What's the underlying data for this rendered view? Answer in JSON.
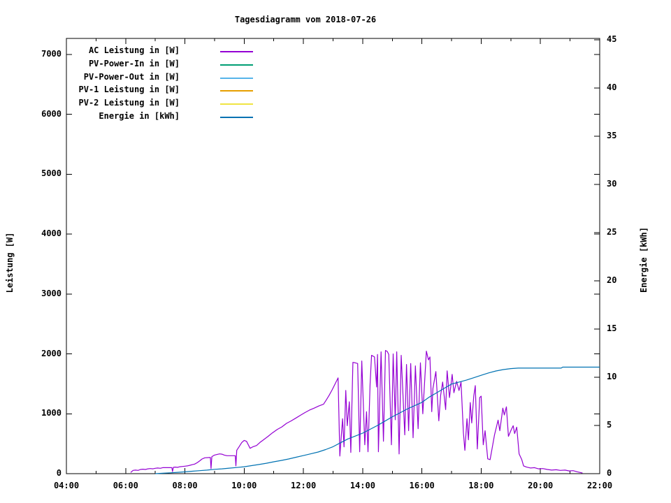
{
  "title": "Tagesdiagramm vom 2018-07-26",
  "axes": {
    "x": {
      "tick_labels": [
        "04:00",
        "06:00",
        "08:00",
        "10:00",
        "12:00",
        "14:00",
        "16:00",
        "18:00",
        "20:00",
        "22:00"
      ],
      "minor_tick_interval_hours": 1
    },
    "y_left": {
      "label": "Leistung [W]",
      "tick_labels": [
        "0",
        "1000",
        "2000",
        "3000",
        "4000",
        "5000",
        "6000",
        "7000"
      ],
      "range": [
        0,
        7000
      ]
    },
    "y_right": {
      "label": "Energie [kWh]",
      "tick_labels": [
        "0",
        "5",
        "10",
        "15",
        "20",
        "25",
        "30",
        "35",
        "40",
        "45"
      ],
      "range": [
        0,
        45
      ]
    }
  },
  "legend": {
    "entries": [
      {
        "label": "AC Leistung in [W]",
        "color": "#9400d3"
      },
      {
        "label": "PV-Power-In in [W]",
        "color": "#009e73"
      },
      {
        "label": "PV-Power-Out in [W]",
        "color": "#56b4e9"
      },
      {
        "label": "PV-1 Leistung in [W]",
        "color": "#e69f00"
      },
      {
        "label": "PV-2 Leistung in [W]",
        "color": "#f0e442"
      },
      {
        "label": "Energie in [kWh]",
        "color": "#0072b2"
      }
    ]
  },
  "chart_data": {
    "type": "line",
    "title": "Tagesdiagramm vom 2018-07-26",
    "x_axis": {
      "unit": "time_of_day_hours",
      "range_hours": [
        4,
        22
      ],
      "major_tick_hours": 2,
      "grid": false
    },
    "y_left_axis": {
      "label": "Leistung [W]",
      "range": [
        0,
        7000
      ],
      "tick_step": 1000
    },
    "y_right_axis": {
      "label": "Energie [kWh]",
      "range": [
        0,
        45
      ],
      "tick_step": 5
    },
    "legend_position": "top-left-inside",
    "series": [
      {
        "name": "AC Leistung in [W]",
        "key": "ac-leistung",
        "color": "#9400d3",
        "axis": "left",
        "points": [
          [
            6.17,
            20
          ],
          [
            6.25,
            55
          ],
          [
            6.33,
            60
          ],
          [
            6.42,
            55
          ],
          [
            6.5,
            70
          ],
          [
            6.58,
            75
          ],
          [
            6.67,
            70
          ],
          [
            6.75,
            80
          ],
          [
            6.83,
            85
          ],
          [
            6.92,
            80
          ],
          [
            7.0,
            90
          ],
          [
            7.08,
            95
          ],
          [
            7.17,
            90
          ],
          [
            7.25,
            100
          ],
          [
            7.33,
            100
          ],
          [
            7.56,
            100
          ],
          [
            7.58,
            35
          ],
          [
            7.61,
            105
          ],
          [
            7.67,
            110
          ],
          [
            7.75,
            105
          ],
          [
            7.83,
            115
          ],
          [
            7.92,
            120
          ],
          [
            8.0,
            125
          ],
          [
            8.08,
            130
          ],
          [
            8.17,
            140
          ],
          [
            8.25,
            150
          ],
          [
            8.33,
            160
          ],
          [
            8.42,
            185
          ],
          [
            8.5,
            215
          ],
          [
            8.58,
            245
          ],
          [
            8.67,
            265
          ],
          [
            8.83,
            270
          ],
          [
            8.86,
            270
          ],
          [
            8.88,
            85
          ],
          [
            8.91,
            285
          ],
          [
            9.0,
            310
          ],
          [
            9.08,
            320
          ],
          [
            9.17,
            330
          ],
          [
            9.25,
            325
          ],
          [
            9.33,
            310
          ],
          [
            9.42,
            300
          ],
          [
            9.7,
            300
          ],
          [
            9.72,
            130
          ],
          [
            9.75,
            390
          ],
          [
            9.83,
            450
          ],
          [
            9.92,
            520
          ],
          [
            10.0,
            555
          ],
          [
            10.08,
            540
          ],
          [
            10.2,
            424
          ],
          [
            10.3,
            450
          ],
          [
            10.42,
            470
          ],
          [
            10.53,
            520
          ],
          [
            10.65,
            565
          ],
          [
            10.8,
            620
          ],
          [
            10.95,
            680
          ],
          [
            11.12,
            740
          ],
          [
            11.27,
            780
          ],
          [
            11.43,
            840
          ],
          [
            11.58,
            880
          ],
          [
            11.75,
            930
          ],
          [
            11.9,
            975
          ],
          [
            12.05,
            1020
          ],
          [
            12.2,
            1060
          ],
          [
            12.37,
            1095
          ],
          [
            12.52,
            1130
          ],
          [
            12.68,
            1160
          ],
          [
            12.77,
            1230
          ],
          [
            12.87,
            1310
          ],
          [
            12.97,
            1400
          ],
          [
            13.07,
            1500
          ],
          [
            13.17,
            1600
          ],
          [
            13.23,
            294
          ],
          [
            13.32,
            917
          ],
          [
            13.37,
            447
          ],
          [
            13.43,
            1390
          ],
          [
            13.48,
            800
          ],
          [
            13.55,
            1200
          ],
          [
            13.6,
            353
          ],
          [
            13.67,
            1858
          ],
          [
            13.75,
            1850
          ],
          [
            13.83,
            1840
          ],
          [
            13.9,
            365
          ],
          [
            13.97,
            1882
          ],
          [
            14.07,
            482
          ],
          [
            14.13,
            1035
          ],
          [
            14.18,
            365
          ],
          [
            14.25,
            1500
          ],
          [
            14.3,
            1976
          ],
          [
            14.4,
            1950
          ],
          [
            14.47,
            1447
          ],
          [
            14.5,
            1990
          ],
          [
            14.53,
            365
          ],
          [
            14.62,
            2035
          ],
          [
            14.7,
            541
          ],
          [
            14.77,
            2058
          ],
          [
            14.83,
            2040
          ],
          [
            14.88,
            1990
          ],
          [
            14.97,
            482
          ],
          [
            15.03,
            2000
          ],
          [
            15.1,
            900
          ],
          [
            15.15,
            2035
          ],
          [
            15.23,
            329
          ],
          [
            15.3,
            1976
          ],
          [
            15.42,
            647
          ],
          [
            15.48,
            1823
          ],
          [
            15.55,
            718
          ],
          [
            15.62,
            1840
          ],
          [
            15.7,
            600
          ],
          [
            15.78,
            1800
          ],
          [
            15.87,
            750
          ],
          [
            15.95,
            1850
          ],
          [
            16.03,
            1000
          ],
          [
            16.15,
            2046
          ],
          [
            16.22,
            1900
          ],
          [
            16.27,
            1950
          ],
          [
            16.33,
            1035
          ],
          [
            16.37,
            1423
          ],
          [
            16.47,
            1705
          ],
          [
            16.57,
            882
          ],
          [
            16.63,
            1305
          ],
          [
            16.7,
            1529
          ],
          [
            16.8,
            1070
          ],
          [
            16.85,
            1717
          ],
          [
            16.93,
            1270
          ],
          [
            17.02,
            1658
          ],
          [
            17.08,
            1352
          ],
          [
            17.17,
            1541
          ],
          [
            17.25,
            1388
          ],
          [
            17.32,
            1529
          ],
          [
            17.4,
            682
          ],
          [
            17.45,
            388
          ],
          [
            17.52,
            917
          ],
          [
            17.57,
            565
          ],
          [
            17.63,
            1188
          ],
          [
            17.68,
            847
          ],
          [
            17.75,
            1294
          ],
          [
            17.8,
            1470
          ],
          [
            17.87,
            412
          ],
          [
            17.95,
            1270
          ],
          [
            18.0,
            1294
          ],
          [
            18.07,
            482
          ],
          [
            18.13,
            718
          ],
          [
            18.22,
            247
          ],
          [
            18.3,
            235
          ],
          [
            18.45,
            647
          ],
          [
            18.57,
            894
          ],
          [
            18.63,
            718
          ],
          [
            18.73,
            1094
          ],
          [
            18.78,
            980
          ],
          [
            18.85,
            1117
          ],
          [
            18.92,
            623
          ],
          [
            19.02,
            741
          ],
          [
            19.08,
            800
          ],
          [
            19.13,
            670
          ],
          [
            19.2,
            776
          ],
          [
            19.28,
            329
          ],
          [
            19.37,
            235
          ],
          [
            19.43,
            129
          ],
          [
            19.53,
            110
          ],
          [
            19.67,
            95
          ],
          [
            19.8,
            100
          ],
          [
            19.93,
            80
          ],
          [
            20.08,
            85
          ],
          [
            20.23,
            70
          ],
          [
            20.38,
            60
          ],
          [
            20.53,
            65
          ],
          [
            20.67,
            55
          ],
          [
            20.83,
            60
          ],
          [
            20.97,
            45
          ],
          [
            21.1,
            50
          ],
          [
            21.25,
            30
          ],
          [
            21.42,
            10
          ]
        ]
      },
      {
        "name": "PV-Power-In in [W]",
        "key": "pv-power-in",
        "color": "#009e73",
        "axis": "left",
        "points": []
      },
      {
        "name": "PV-Power-Out in [W]",
        "key": "pv-power-out",
        "color": "#56b4e9",
        "axis": "left",
        "points": []
      },
      {
        "name": "PV-1 Leistung in [W]",
        "key": "pv1-leistung",
        "color": "#e69f00",
        "axis": "left",
        "points": []
      },
      {
        "name": "PV-2 Leistung in [W]",
        "key": "pv2-leistung",
        "color": "#f0e442",
        "axis": "left",
        "points": []
      },
      {
        "name": "Energie in [kWh]",
        "key": "energie",
        "color": "#0072b2",
        "axis": "right",
        "points": [
          [
            7.0,
            0
          ],
          [
            7.25,
            0.04
          ],
          [
            7.5,
            0.09
          ],
          [
            7.75,
            0.14
          ],
          [
            8.0,
            0.19
          ],
          [
            8.25,
            0.25
          ],
          [
            8.5,
            0.31
          ],
          [
            8.75,
            0.37
          ],
          [
            9.0,
            0.45
          ],
          [
            9.25,
            0.5
          ],
          [
            9.5,
            0.57
          ],
          [
            9.75,
            0.64
          ],
          [
            10.0,
            0.72
          ],
          [
            10.25,
            0.83
          ],
          [
            10.5,
            0.95
          ],
          [
            10.75,
            1.08
          ],
          [
            11.0,
            1.23
          ],
          [
            11.25,
            1.37
          ],
          [
            11.5,
            1.52
          ],
          [
            11.75,
            1.7
          ],
          [
            12.0,
            1.88
          ],
          [
            12.25,
            2.06
          ],
          [
            12.5,
            2.25
          ],
          [
            12.75,
            2.5
          ],
          [
            13.0,
            2.8
          ],
          [
            13.25,
            3.2
          ],
          [
            13.5,
            3.6
          ],
          [
            13.75,
            3.9
          ],
          [
            14.0,
            4.2
          ],
          [
            14.25,
            4.6
          ],
          [
            14.5,
            5.0
          ],
          [
            14.75,
            5.45
          ],
          [
            15.0,
            5.9
          ],
          [
            15.25,
            6.3
          ],
          [
            15.5,
            6.7
          ],
          [
            15.75,
            7.05
          ],
          [
            16.0,
            7.4
          ],
          [
            16.25,
            7.95
          ],
          [
            16.5,
            8.4
          ],
          [
            16.75,
            8.85
          ],
          [
            17.0,
            9.3
          ],
          [
            17.25,
            9.5
          ],
          [
            17.5,
            9.7
          ],
          [
            17.75,
            9.95
          ],
          [
            18.0,
            10.2
          ],
          [
            18.25,
            10.45
          ],
          [
            18.5,
            10.65
          ],
          [
            18.75,
            10.8
          ],
          [
            19.0,
            10.9
          ],
          [
            19.25,
            10.95
          ],
          [
            20.7,
            10.95
          ],
          [
            20.75,
            11.05
          ],
          [
            22.0,
            11.05
          ]
        ]
      }
    ]
  }
}
